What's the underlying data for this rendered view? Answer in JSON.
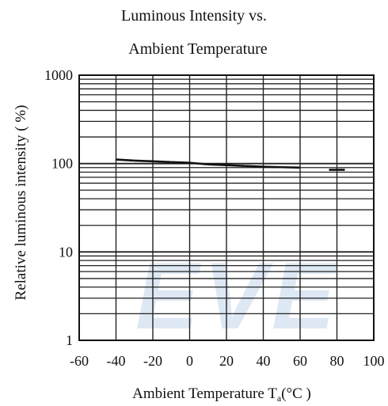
{
  "chart_data": {
    "type": "line",
    "title_lines": [
      "Luminous Intensity vs.",
      "Ambient Temperature"
    ],
    "xlabel": "Ambient Temperature T",
    "xlabel_sub": "a",
    "xlabel_unit": "(°C )",
    "ylabel": "Relative luminous intensity ( %)",
    "xlim": [
      -60,
      100
    ],
    "ylim": [
      1,
      1000
    ],
    "yscale": "log",
    "grid": true,
    "x_ticks": [
      "-60",
      "-40",
      "-20",
      "0",
      "20",
      "40",
      "60",
      "80",
      "100"
    ],
    "y_ticks": [
      "1",
      "10",
      "100",
      "1000"
    ],
    "series": [
      {
        "x": [
          -40,
          -30,
          -20,
          -10,
          0,
          10,
          20,
          30,
          40,
          50,
          60,
          80
        ],
        "y": [
          111,
          108,
          106,
          104,
          102,
          98,
          96,
          94,
          92,
          91,
          90,
          85
        ]
      }
    ],
    "watermark": "EVE",
    "colors": {
      "line": "#111111",
      "grid": "#222222",
      "watermark": "#dde8f4"
    }
  }
}
